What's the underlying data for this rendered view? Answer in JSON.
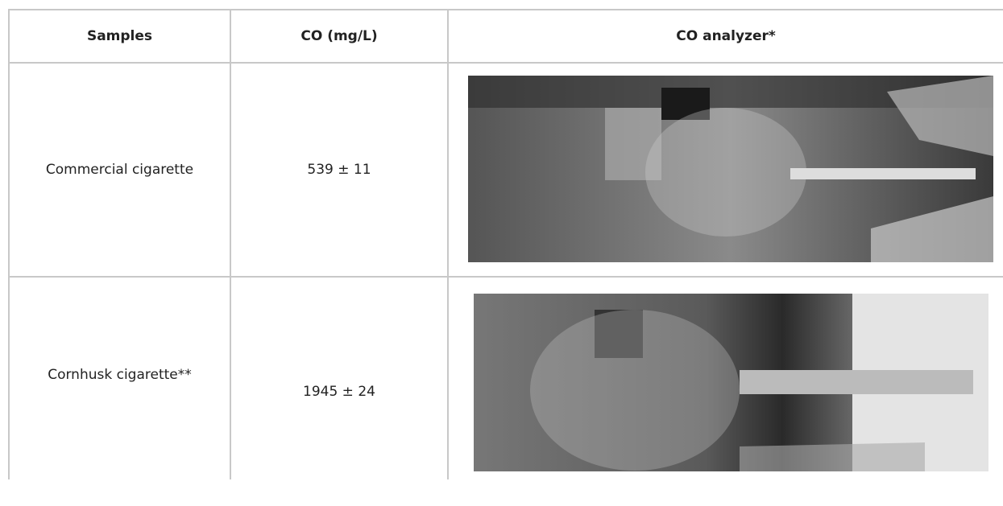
{
  "table": {
    "header": [
      "Samples",
      "CO (mg/L)",
      "CO analyzer*"
    ],
    "rows": [
      [
        "Commercial cigarette",
        "539 ± 11"
      ],
      [
        "Cornhusk cigarette**",
        "1945 ± 24"
      ]
    ]
  }
}
